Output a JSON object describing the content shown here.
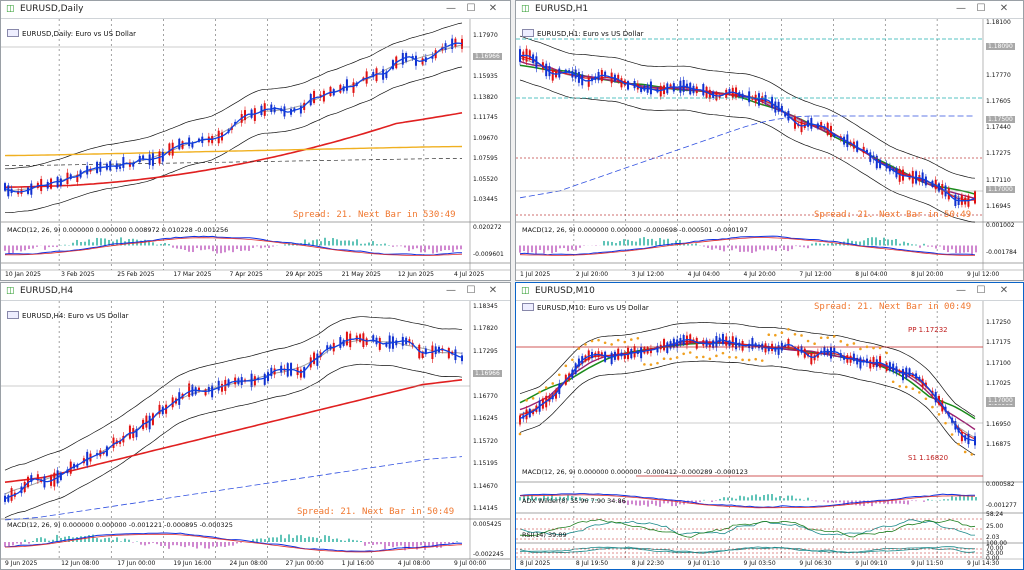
{
  "windows": [
    {
      "title": "EURUSD,Daily",
      "main_label": "EURUSD,Daily: Euro vs US Dollar",
      "spread": "Spread: 21. Next Bar in 530:49",
      "macd": "MACD(12, 26, 9) 0.000000 0.000000 0.008972 0.010228 -0.001256",
      "price_labels": [
        "1.17970",
        "1.16966",
        "1.15935",
        "1.13820",
        "1.11745",
        "1.09670",
        "1.07595",
        "1.05520",
        "1.03445"
      ],
      "highlight_price": "1.16966",
      "macd_labels": [
        "0.020272",
        "-0.009601"
      ],
      "time_labels": [
        "10 Jan 2025",
        "3 Feb 2025",
        "25 Feb 2025",
        "17 Mar 2025",
        "7 Apr 2025",
        "29 Apr 2025",
        "21 May 2025",
        "12 Jun 2025",
        "4 Jul 2025"
      ]
    },
    {
      "title": "EURUSD,H1",
      "main_label": "EURUSD,H1: Euro vs US Dollar",
      "spread": "Spread: 21. Next Bar in 50:49",
      "macd": "MACD(12, 26, 9) 0.000000 0.000000 -0.000698 -0.000501 -0.000197",
      "price_labels": [
        "1.18100",
        "1.17935",
        "1.17770",
        "1.17605",
        "1.17440",
        "1.17275",
        "1.17110",
        "1.16945"
      ],
      "highlight_prices": [
        "1.18090",
        "1.17500",
        "1.17000"
      ],
      "macd_labels": [
        "0.001002",
        "-0.001784"
      ],
      "time_labels": [
        "1 Jul 2025",
        "2 Jul 20:00",
        "3 Jul 12:00",
        "4 Jul 04:00",
        "4 Jul 20:00",
        "7 Jul 12:00",
        "8 Jul 04:00",
        "8 Jul 20:00",
        "9 Jul 12:00"
      ]
    },
    {
      "title": "EURUSD,H4",
      "main_label": "EURUSD,H4: Euro vs US Dollar",
      "spread": "Spread: 21. Next Bar in 50:49",
      "macd": "MACD(12, 26, 9) 0.000000 0.000000 -0.001221 -0.000895 -0.000325",
      "price_labels": [
        "1.18345",
        "1.17820",
        "1.17295",
        "1.16966",
        "1.16770",
        "1.16245",
        "1.15720",
        "1.15195",
        "1.14670",
        "1.14145"
      ],
      "highlight_price": "1.16966",
      "macd_labels": [
        "0.005425",
        "-0.002245"
      ],
      "time_labels": [
        "9 Jun 2025",
        "12 Jun 08:00",
        "17 Jun 00:00",
        "19 Jun 16:00",
        "24 Jun 08:00",
        "27 Jun 00:00",
        "1 Jul 16:00",
        "4 Jul 08:00",
        "9 Jul 00:00"
      ]
    },
    {
      "title": "EURUSD,M10",
      "main_label": "EURUSD,M10: Euro vs US Dollar",
      "spread": "Spread: 21. Next Bar in 00:49",
      "pp": "PP 1.17232",
      "s1": "S1 1.16820",
      "macd": "MACD(12, 26, 9) 0.000000 0.000000 -0.000412 -0.000289 -0.000123",
      "adx": "ADX Wilder(8) 35.96 7.90 34.86",
      "rsi": "RSI(14) 39.89",
      "price_labels": [
        "1.17250",
        "1.17175",
        "1.17100",
        "1.17025",
        "1.16968",
        "1.16950",
        "1.16875"
      ],
      "highlight_prices": [
        "1.17000",
        "1.16968"
      ],
      "macd_labels": [
        "0.000582",
        "-0.001277"
      ],
      "adx_labels": [
        "58.24",
        "25.00",
        "2.03"
      ],
      "rsi_labels": [
        "100.00",
        "70.00",
        "30.00",
        "0.00"
      ],
      "time_labels": [
        "8 Jul 2025",
        "8 Jul 19:50",
        "8 Jul 22:30",
        "9 Jul 01:10",
        "9 Jul 03:50",
        "9 Jul 06:30",
        "9 Jul 09:10",
        "9 Jul 11:50",
        "9 Jul 14:30"
      ]
    }
  ]
}
